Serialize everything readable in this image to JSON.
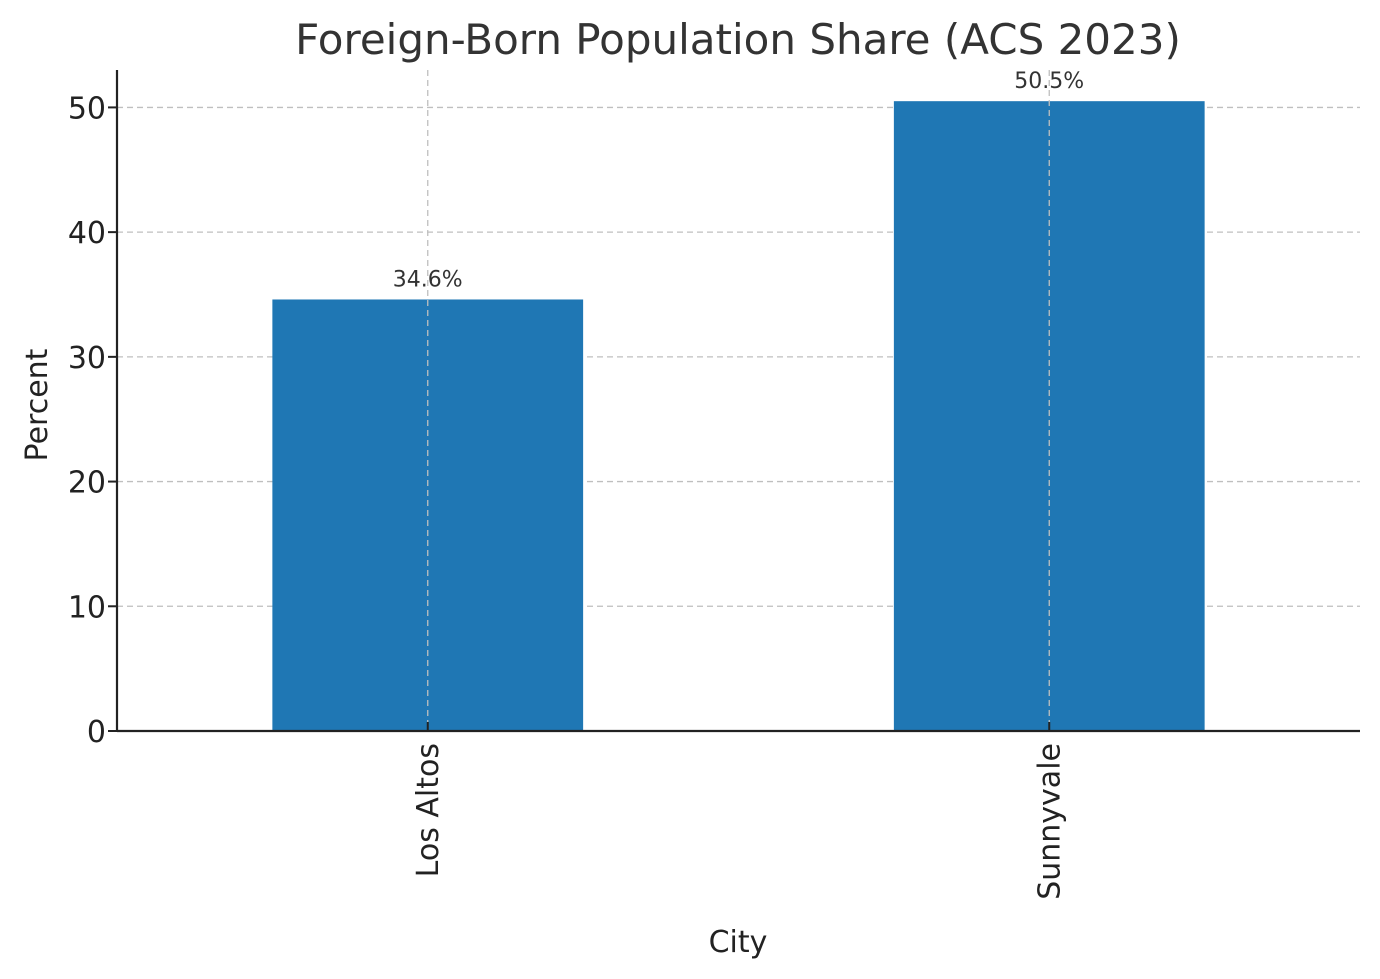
{
  "chart_data": {
    "type": "bar",
    "title": "Foreign-Born Population Share (ACS 2023)",
    "xlabel": "City",
    "ylabel": "Percent",
    "categories": [
      "Los Altos",
      "Sunnyvale"
    ],
    "values": [
      34.6,
      50.5
    ],
    "data_labels": [
      "34.6%",
      "50.5%"
    ],
    "yticks": [
      0,
      10,
      20,
      30,
      40,
      50
    ],
    "ylim": [
      0,
      53
    ],
    "grid": true,
    "x_tick_rotation": "vertical",
    "bar_color": "#1f77b4"
  }
}
